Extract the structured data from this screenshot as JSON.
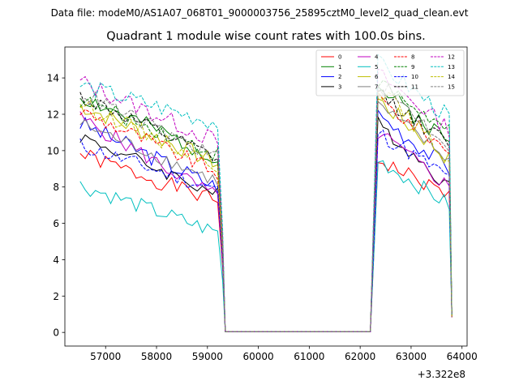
{
  "figure": {
    "suptitle": "Data file: modeM0/AS1A07_068T01_9000003756_25895cztM0_level2_quad_clean.evt"
  },
  "chart_data": {
    "type": "line",
    "title": "Quadrant 1 module wise count rates with 100.0s bins.",
    "xlabel": "",
    "ylabel": "",
    "x_offset_label": "+3.322e8",
    "xlim": [
      56200,
      64100
    ],
    "ylim": [
      -0.75,
      15.7
    ],
    "xticks": [
      57000,
      58000,
      59000,
      60000,
      61000,
      62000,
      63000,
      64000
    ],
    "yticks": [
      0,
      2,
      4,
      6,
      8,
      10,
      12,
      14
    ],
    "grid": false,
    "legend": {
      "position": "top-right",
      "ncol": 4
    },
    "series": [
      {
        "name": "0",
        "color": "#ff0000",
        "dash": "solid",
        "start": 9.8,
        "end": 7.2,
        "amp": 0.45,
        "rise": 9.5,
        "rend": 7.5,
        "seed": 1
      },
      {
        "name": "1",
        "color": "#008000",
        "dash": "solid",
        "start": 13.0,
        "end": 9.6,
        "amp": 0.5,
        "rise": 13.5,
        "rend": 10.5,
        "seed": 2
      },
      {
        "name": "2",
        "color": "#0000ff",
        "dash": "solid",
        "start": 11.5,
        "end": 8.0,
        "amp": 0.5,
        "rise": 12.0,
        "rend": 9.0,
        "seed": 3
      },
      {
        "name": "3",
        "color": "#000000",
        "dash": "solid",
        "start": 10.8,
        "end": 7.6,
        "amp": 0.4,
        "rise": 11.5,
        "rend": 8.0,
        "seed": 4
      },
      {
        "name": "4",
        "color": "#c000c0",
        "dash": "solid",
        "start": 11.8,
        "end": 7.4,
        "amp": 0.45,
        "rise": 11.0,
        "rend": 8.0,
        "seed": 5
      },
      {
        "name": "5",
        "color": "#00bfbf",
        "dash": "solid",
        "start": 8.1,
        "end": 5.5,
        "amp": 0.45,
        "rise": 9.5,
        "rend": 7.0,
        "seed": 6
      },
      {
        "name": "6",
        "color": "#bfbf00",
        "dash": "solid",
        "start": 12.5,
        "end": 9.3,
        "amp": 0.5,
        "rise": 12.8,
        "rend": 9.5,
        "seed": 7
      },
      {
        "name": "7",
        "color": "#808080",
        "dash": "solid",
        "start": 11.5,
        "end": 8.3,
        "amp": 0.4,
        "rise": 12.5,
        "rend": 9.5,
        "seed": 8
      },
      {
        "name": "8",
        "color": "#ff0000",
        "dash": "dashed",
        "start": 12.2,
        "end": 8.8,
        "amp": 0.45,
        "rise": 12.8,
        "rend": 10.0,
        "seed": 9
      },
      {
        "name": "9",
        "color": "#008000",
        "dash": "dashed",
        "start": 12.8,
        "end": 9.8,
        "amp": 0.45,
        "rise": 13.8,
        "rend": 11.0,
        "seed": 10
      },
      {
        "name": "10",
        "color": "#0000ff",
        "dash": "dashed",
        "start": 10.3,
        "end": 7.8,
        "amp": 0.45,
        "rise": 11.0,
        "rend": 8.5,
        "seed": 11
      },
      {
        "name": "11",
        "color": "#000000",
        "dash": "dashed",
        "start": 13.0,
        "end": 9.5,
        "amp": 0.45,
        "rise": 13.2,
        "rend": 10.3,
        "seed": 12
      },
      {
        "name": "12",
        "color": "#c000c0",
        "dash": "dashed",
        "start": 13.8,
        "end": 10.5,
        "amp": 0.5,
        "rise": 14.2,
        "rend": 11.2,
        "seed": 13
      },
      {
        "name": "13",
        "color": "#00bfbf",
        "dash": "dashed",
        "start": 13.6,
        "end": 11.5,
        "amp": 0.5,
        "rise": 14.8,
        "rend": 11.8,
        "seed": 14
      },
      {
        "name": "14",
        "color": "#bfbf00",
        "dash": "dashed",
        "start": 12.6,
        "end": 9.2,
        "amp": 0.45,
        "rise": 13.5,
        "rend": 9.5,
        "seed": 15
      },
      {
        "name": "15",
        "color": "#808080",
        "dash": "dashed",
        "start": 13.2,
        "end": 9.6,
        "amp": 0.45,
        "rise": 13.7,
        "rend": 10.3,
        "seed": 16
      }
    ],
    "segments": {
      "first_on": [
        56500,
        59200
      ],
      "drop_end": 59350,
      "zero_span": [
        59350,
        62200
      ],
      "rise_at": 62350,
      "second_on": [
        62350,
        63700
      ],
      "last_x": 63800
    },
    "bin_width": 100
  }
}
